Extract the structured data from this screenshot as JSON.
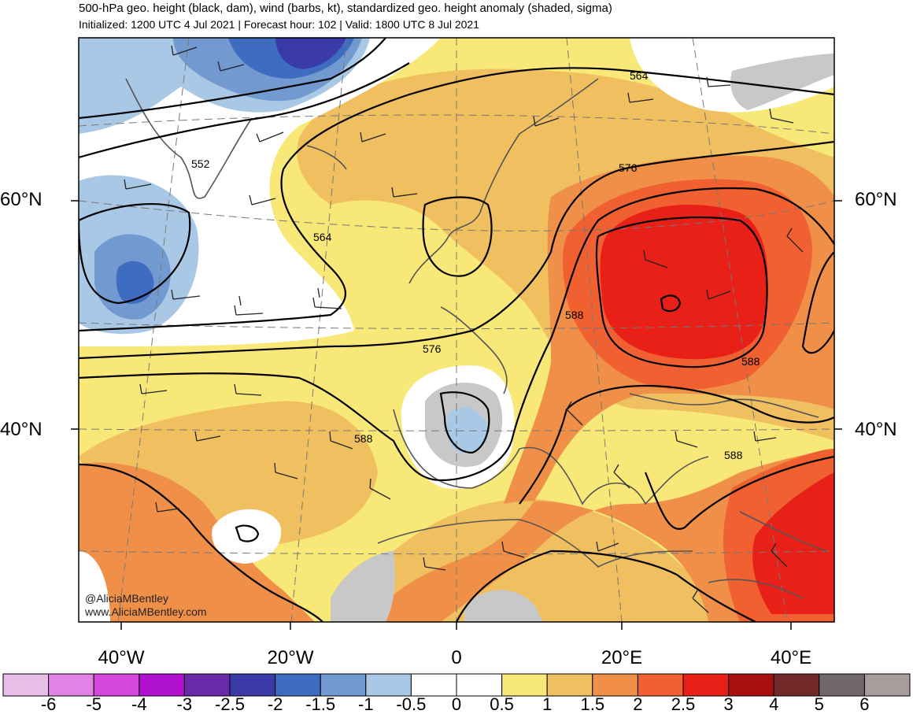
{
  "header": {
    "title": "500-hPa geo. height (black, dam), wind (barbs, kt), standardized geo. height anomaly (shaded, sigma)",
    "subtitle": "Initialized: 1200 UTC 4 Jul 2021 | Forecast hour: 102 | Valid: 1800 UTC 8 Jul 2021"
  },
  "map": {
    "lat_labels": [
      "60°N",
      "40°N"
    ],
    "lon_labels": [
      "40°W",
      "20°W",
      "0",
      "20°E",
      "40°E"
    ],
    "contour_labels": [
      "552",
      "564",
      "576",
      "588",
      "564",
      "576",
      "588",
      "588",
      "588"
    ],
    "credit": [
      "@AliciaMBentley",
      "www.AliciaMBentley.com"
    ]
  },
  "colorbar": {
    "labels": [
      "-6",
      "-5",
      "-4",
      "-3",
      "-2.5",
      "-2",
      "-1.5",
      "-1",
      "-0.5",
      "0",
      "0.5",
      "1",
      "1.5",
      "2",
      "2.5",
      "3",
      "4",
      "5",
      "6"
    ],
    "colors": [
      "#e8bde8",
      "#e083e4",
      "#d446dc",
      "#b010d0",
      "#6a2aa8",
      "#3a3aa8",
      "#3d6cc0",
      "#729ad0",
      "#a8c8e6",
      "#ffffff",
      "#ffffff",
      "#f8e878",
      "#f0c060",
      "#f09048",
      "#f06030",
      "#e82018",
      "#a81010",
      "#702828",
      "#706868",
      "#a89c9c"
    ]
  }
}
